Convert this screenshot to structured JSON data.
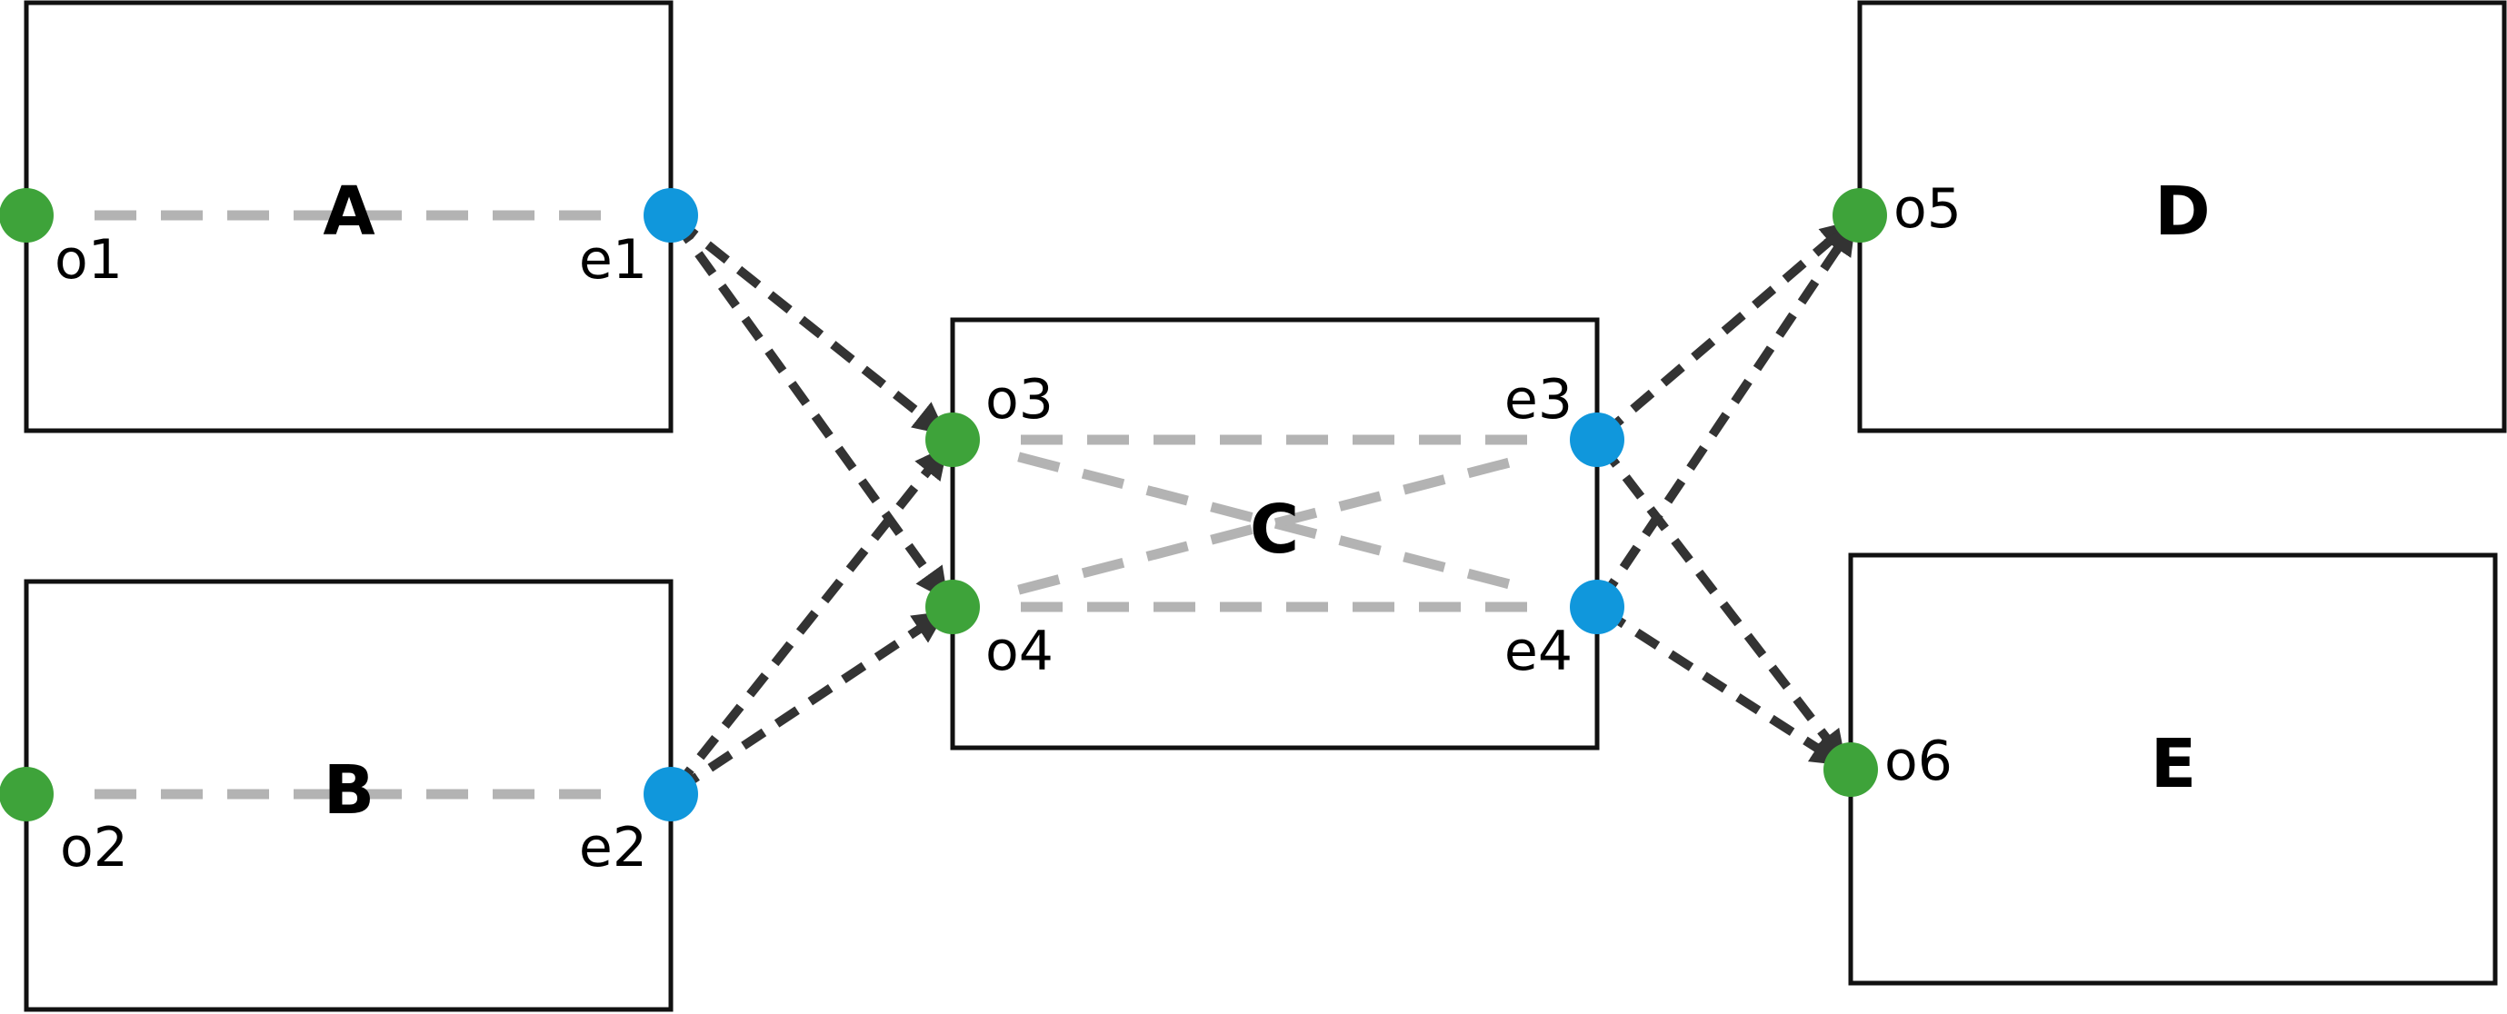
{
  "colors": {
    "origin_port": "#3ea33a",
    "exit_port": "#1097dc",
    "box_border": "#111111",
    "internal_link": "#b3b3b3",
    "connection": "#333333"
  },
  "boxes": {
    "A": {
      "label": "A"
    },
    "B": {
      "label": "B"
    },
    "C": {
      "label": "C"
    },
    "D": {
      "label": "D"
    },
    "E": {
      "label": "E"
    }
  },
  "ports": {
    "o1": {
      "label": "o1",
      "type": "origin"
    },
    "e1": {
      "label": "e1",
      "type": "exit"
    },
    "o2": {
      "label": "o2",
      "type": "origin"
    },
    "e2": {
      "label": "e2",
      "type": "exit"
    },
    "o3": {
      "label": "o3",
      "type": "origin"
    },
    "o4": {
      "label": "o4",
      "type": "origin"
    },
    "e3": {
      "label": "e3",
      "type": "exit"
    },
    "e4": {
      "label": "e4",
      "type": "exit"
    },
    "o5": {
      "label": "o5",
      "type": "origin"
    },
    "o6": {
      "label": "o6",
      "type": "origin"
    }
  },
  "internal_links": [
    {
      "from": "o1",
      "to": "e1"
    },
    {
      "from": "o2",
      "to": "e2"
    },
    {
      "from": "o3",
      "to": "e3"
    },
    {
      "from": "o4",
      "to": "e4"
    },
    {
      "from": "o3",
      "to": "e4"
    },
    {
      "from": "o4",
      "to": "e3"
    }
  ],
  "connections": [
    {
      "from": "e1",
      "to": "o3"
    },
    {
      "from": "e1",
      "to": "o4"
    },
    {
      "from": "e2",
      "to": "o3"
    },
    {
      "from": "e2",
      "to": "o4"
    },
    {
      "from": "e3",
      "to": "o5"
    },
    {
      "from": "e3",
      "to": "o6"
    },
    {
      "from": "e4",
      "to": "o5"
    },
    {
      "from": "e4",
      "to": "o6"
    }
  ]
}
